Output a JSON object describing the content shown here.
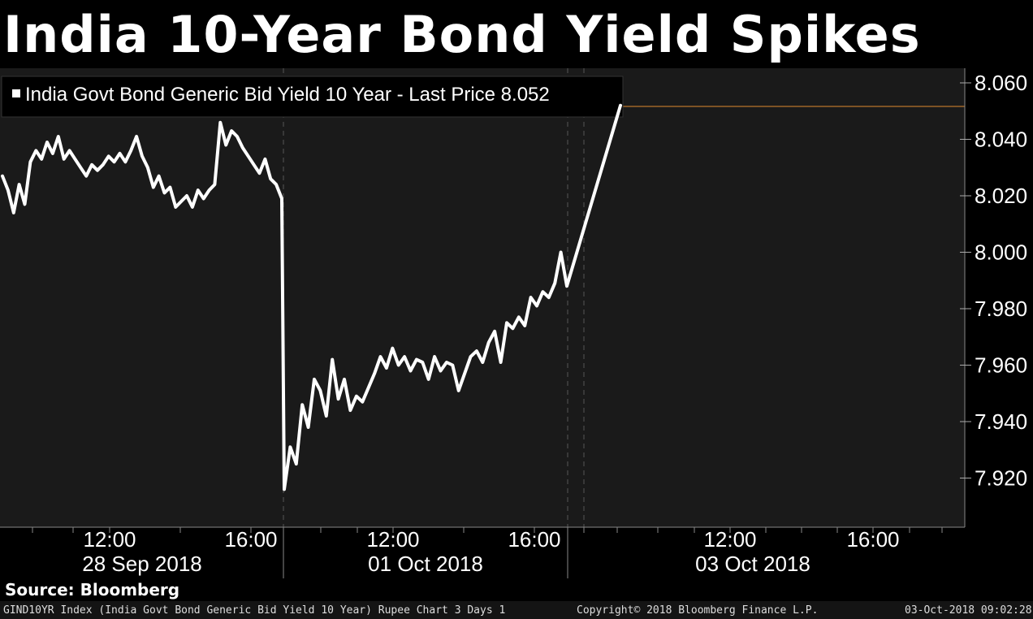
{
  "title": "India 10-Year Bond Yield Spikes",
  "source": "Source: Bloomberg",
  "footer": {
    "left": "GIND10YR Index (India Govt Bond Generic Bid Yield 10 Year) Rupee Chart 3 Days 1",
    "center": "Copyright© 2018 Bloomberg Finance L.P.",
    "right": "03-Oct-2018 09:02:28"
  },
  "chart_data": {
    "type": "line",
    "legend_text": "India Govt Bond Generic Bid Yield 10 Year - Last Price 8.052",
    "last_price": 8.052,
    "ylim": [
      7.9,
      8.065
    ],
    "y_ticks": [
      "8.060",
      "8.040",
      "8.020",
      "8.000",
      "7.980",
      "7.960",
      "7.940",
      "7.920"
    ],
    "x_time_labels": [
      "12:00",
      "16:00",
      "12:00",
      "16:00",
      "12:00",
      "16:00"
    ],
    "x_date_labels": [
      "28 Sep 2018",
      "01 Oct 2018",
      "03 Oct 2018"
    ],
    "series": [
      {
        "values": [
          8.027,
          8.022,
          8.014,
          8.024,
          8.017,
          8.032,
          8.036,
          8.033,
          8.039,
          8.035,
          8.041,
          8.033,
          8.036,
          8.033,
          8.03,
          8.027,
          8.031,
          8.029,
          8.031,
          8.034,
          8.032,
          8.035,
          8.032,
          8.036,
          8.041,
          8.034,
          8.03,
          8.023,
          8.027,
          8.021,
          8.023,
          8.016,
          8.018,
          8.02,
          8.016,
          8.022,
          8.019,
          8.022,
          8.024,
          8.046,
          8.038,
          8.043,
          8.041,
          8.037,
          8.034,
          8.031,
          8.028,
          8.033,
          8.026,
          8.024,
          8.019,
          7.916,
          7.931,
          7.925,
          7.946,
          7.938,
          7.955,
          7.951,
          7.942,
          7.962,
          7.948,
          7.955,
          7.944,
          7.949,
          7.947,
          7.952,
          7.957,
          7.963,
          7.959,
          7.966,
          7.96,
          7.963,
          7.958,
          7.962,
          7.961,
          7.955,
          7.963,
          7.958,
          7.961,
          7.96,
          7.951,
          7.957,
          7.963,
          7.965,
          7.961,
          7.968,
          7.972,
          7.961,
          7.975,
          7.973,
          7.977,
          7.974,
          7.984,
          7.981,
          7.986,
          7.984,
          7.989,
          8.0,
          7.988,
          8.052
        ]
      }
    ]
  }
}
